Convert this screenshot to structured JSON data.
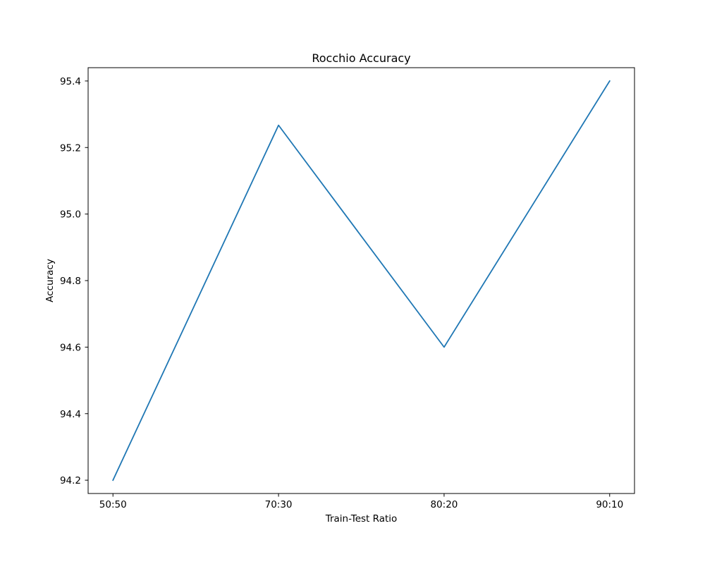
{
  "chart_data": {
    "type": "line",
    "title": "Rocchio Accuracy",
    "xlabel": "Train-Test Ratio",
    "ylabel": "Accuracy",
    "categories": [
      "50:50",
      "70:30",
      "80:20",
      "90:10"
    ],
    "series": [
      {
        "values": [
          94.2,
          95.267,
          94.6,
          95.4
        ],
        "color": "#1f77b4"
      }
    ],
    "yticks": [
      94.2,
      94.4,
      94.6,
      94.8,
      95.0,
      95.2,
      95.4
    ],
    "ytick_labels": [
      "94.2",
      "94.4",
      "94.6",
      "94.8",
      "95.0",
      "95.2",
      "95.4"
    ],
    "ylim": [
      94.16,
      95.44
    ],
    "grid": false,
    "legend": false
  }
}
